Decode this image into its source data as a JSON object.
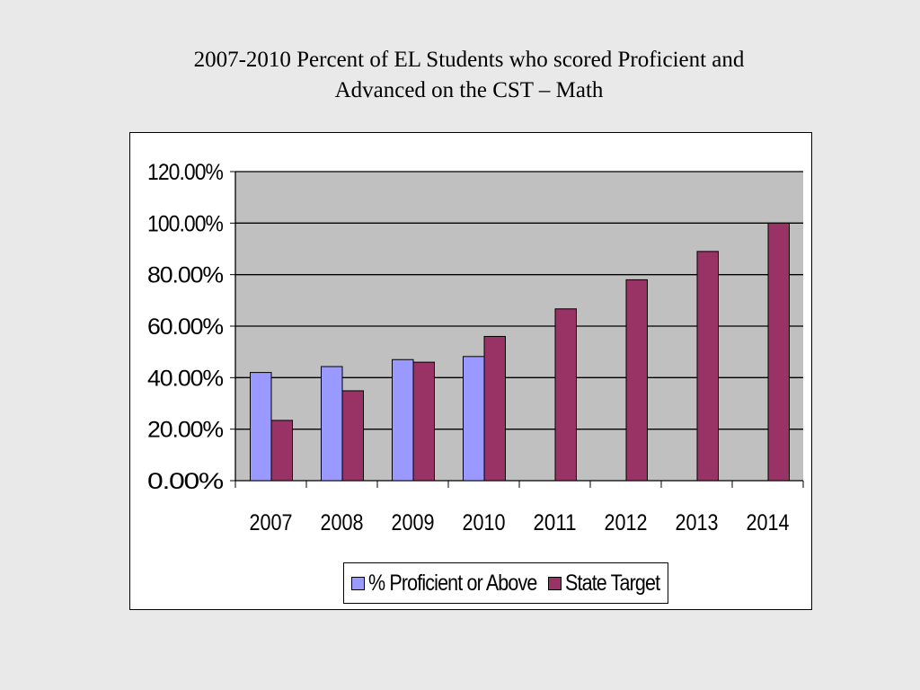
{
  "title_lines": [
    "2007-2010 Percent of EL Students who scored Proficient and",
    "Advanced on the CST – Math"
  ],
  "chart_data": {
    "type": "bar",
    "title": "2007-2010 Percent of EL Students who scored Proficient and Advanced on the CST – Math",
    "categories": [
      "2007",
      "2008",
      "2009",
      "2010",
      "2011",
      "2012",
      "2013",
      "2014"
    ],
    "series": [
      {
        "name": "% Proficient or Above",
        "color": "#9999ff",
        "values": [
          0.42,
          0.443,
          0.47,
          0.482,
          null,
          null,
          null,
          null
        ]
      },
      {
        "name": "State Target",
        "color": "#993366",
        "values": [
          0.234,
          0.349,
          0.46,
          0.56,
          0.667,
          0.78,
          0.89,
          1.0
        ]
      }
    ],
    "yticks": [
      "0.00%",
      "20.00%",
      "40.00%",
      "60.00%",
      "80.00%",
      "100.00%",
      "120.00%"
    ],
    "ylim": [
      0,
      1.2
    ],
    "plot_background": "#c0c0c0",
    "grid": true,
    "legend_position": "bottom"
  }
}
